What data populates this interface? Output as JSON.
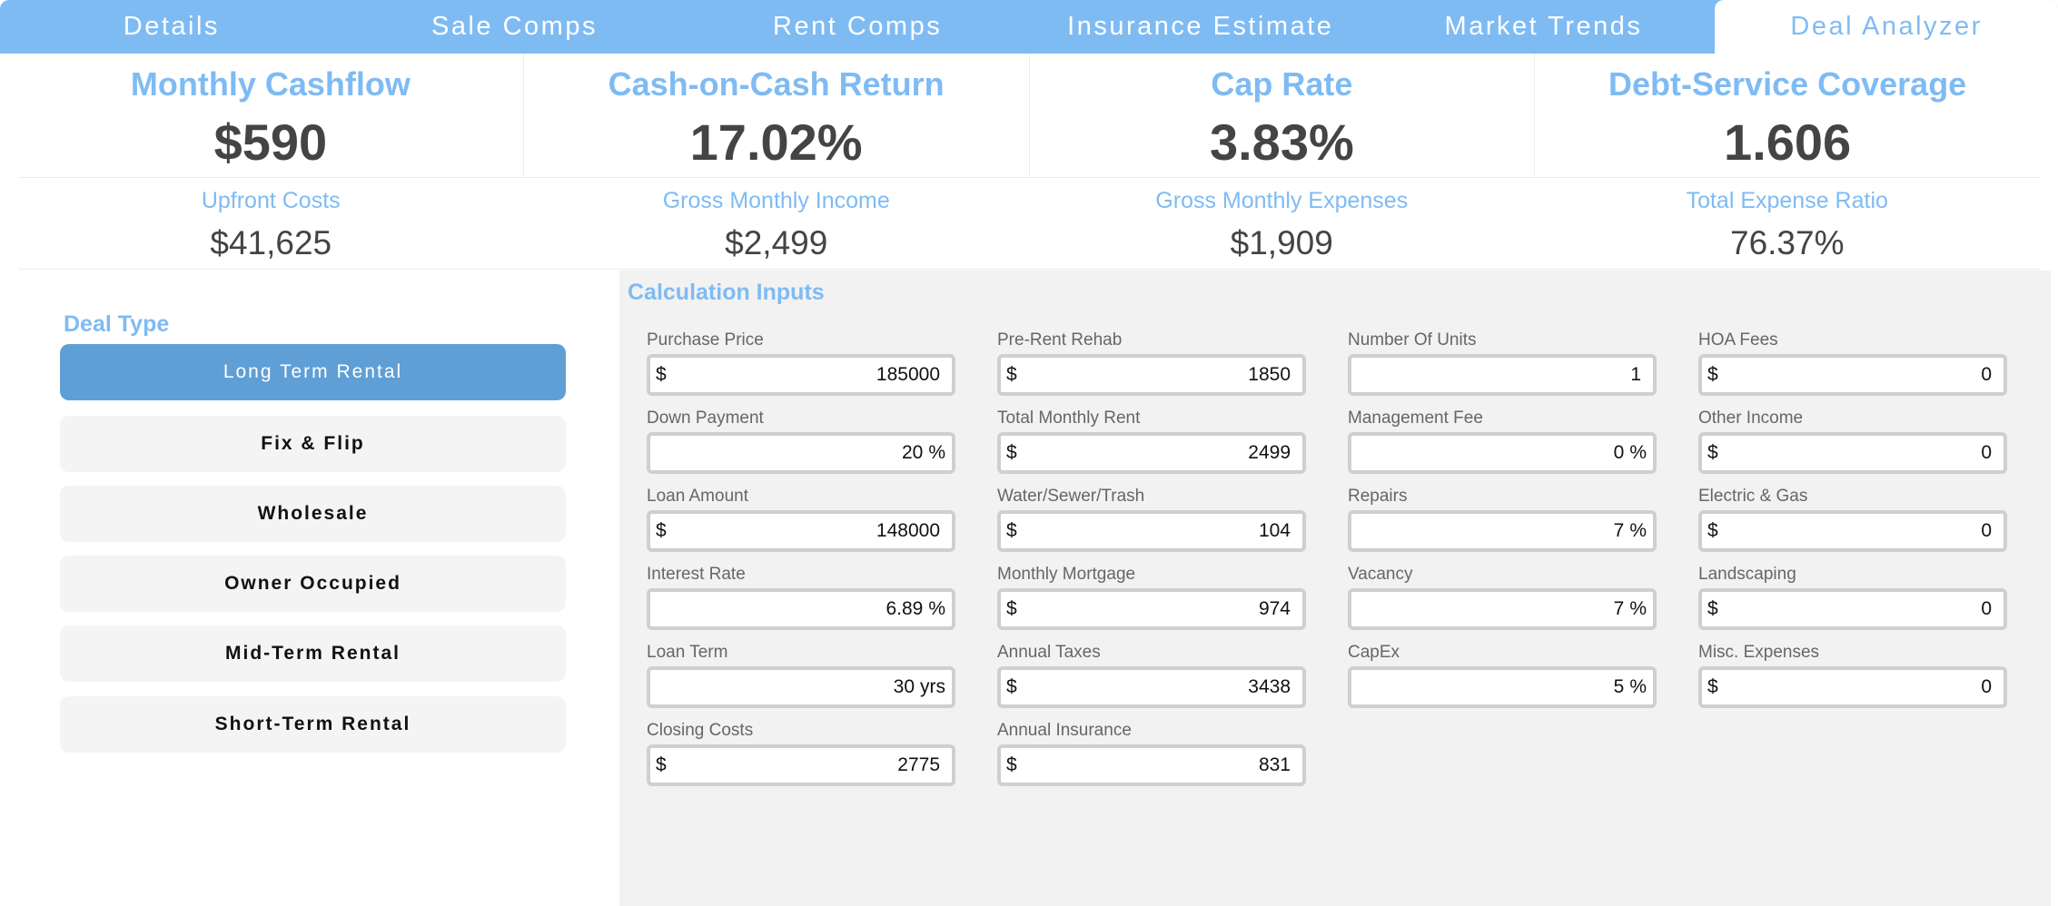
{
  "tabs": [
    {
      "label": "Details"
    },
    {
      "label": "Sale Comps"
    },
    {
      "label": "Rent Comps"
    },
    {
      "label": "Insurance Estimate"
    },
    {
      "label": "Market Trends"
    },
    {
      "label": "Deal Analyzer"
    }
  ],
  "active_tab": "Deal Analyzer",
  "colors": {
    "accent": "#7fbbf3",
    "active_button": "#5f9fd5",
    "value_text": "#444444"
  },
  "metrics": [
    {
      "label": "Monthly Cashflow",
      "value": "$590"
    },
    {
      "label": "Cash-on-Cash Return",
      "value": "17.02%"
    },
    {
      "label": "Cap Rate",
      "value": "3.83%"
    },
    {
      "label": "Debt-Service Coverage",
      "value": "1.606"
    }
  ],
  "sub_metrics": [
    {
      "label": "Upfront Costs",
      "value": "$41,625"
    },
    {
      "label": "Gross Monthly Income",
      "value": "$2,499"
    },
    {
      "label": "Gross Monthly Expenses",
      "value": "$1,909"
    },
    {
      "label": "Total Expense Ratio",
      "value": "76.37%"
    }
  ],
  "deal_type": {
    "title": "Deal Type",
    "selected": "Long Term Rental",
    "options": [
      {
        "label": "Long Term Rental"
      },
      {
        "label": "Fix & Flip"
      },
      {
        "label": "Wholesale"
      },
      {
        "label": "Owner Occupied"
      },
      {
        "label": "Mid-Term Rental"
      },
      {
        "label": "Short-Term Rental"
      }
    ]
  },
  "inputs": {
    "title": "Calculation Inputs",
    "columns": [
      [
        {
          "label": "Purchase Price",
          "prefix": "$",
          "value": "185000",
          "suffix": ""
        },
        {
          "label": "Down Payment",
          "prefix": "",
          "value": "20",
          "suffix": "%"
        },
        {
          "label": "Loan Amount",
          "prefix": "$",
          "value": "148000",
          "suffix": ""
        },
        {
          "label": "Interest Rate",
          "prefix": "",
          "value": "6.89",
          "suffix": "%"
        },
        {
          "label": "Loan Term",
          "prefix": "",
          "value": "30",
          "suffix": "yrs"
        },
        {
          "label": "Closing Costs",
          "prefix": "$",
          "value": "2775",
          "suffix": ""
        }
      ],
      [
        {
          "label": "Pre-Rent Rehab",
          "prefix": "$",
          "value": "1850",
          "suffix": ""
        },
        {
          "label": "Total Monthly Rent",
          "prefix": "$",
          "value": "2499",
          "suffix": ""
        },
        {
          "label": "Water/Sewer/Trash",
          "prefix": "$",
          "value": "104",
          "suffix": ""
        },
        {
          "label": "Monthly Mortgage",
          "prefix": "$",
          "value": "974",
          "suffix": ""
        },
        {
          "label": "Annual Taxes",
          "prefix": "$",
          "value": "3438",
          "suffix": ""
        },
        {
          "label": "Annual Insurance",
          "prefix": "$",
          "value": "831",
          "suffix": ""
        }
      ],
      [
        {
          "label": "Number Of Units",
          "prefix": "",
          "value": "1",
          "suffix": ""
        },
        {
          "label": "Management Fee",
          "prefix": "",
          "value": "0",
          "suffix": "%"
        },
        {
          "label": "Repairs",
          "prefix": "",
          "value": "7",
          "suffix": "%"
        },
        {
          "label": "Vacancy",
          "prefix": "",
          "value": "7",
          "suffix": "%"
        },
        {
          "label": "CapEx",
          "prefix": "",
          "value": "5",
          "suffix": "%"
        }
      ],
      [
        {
          "label": "HOA Fees",
          "prefix": "$",
          "value": "0",
          "suffix": ""
        },
        {
          "label": "Other Income",
          "prefix": "$",
          "value": "0",
          "suffix": ""
        },
        {
          "label": "Electric & Gas",
          "prefix": "$",
          "value": "0",
          "suffix": ""
        },
        {
          "label": "Landscaping",
          "prefix": "$",
          "value": "0",
          "suffix": ""
        },
        {
          "label": "Misc. Expenses",
          "prefix": "$",
          "value": "0",
          "suffix": ""
        }
      ]
    ]
  }
}
